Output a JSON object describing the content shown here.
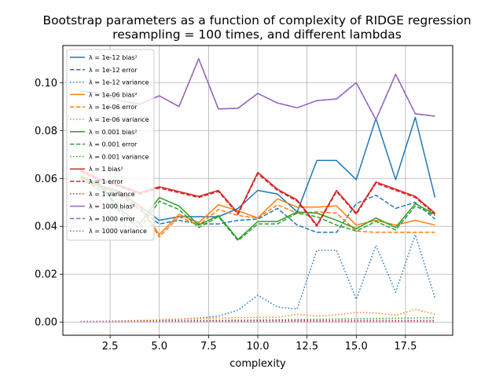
{
  "chart_data": {
    "type": "line",
    "title": "Bootstrap parameters as a function of complexity of RIDGE regression",
    "subtitle": "resampling = 100 times, and different lambdas",
    "xlabel": "complexity",
    "ylabel": "",
    "xlim": [
      0.1,
      19.9
    ],
    "ylim": [
      -0.0055,
      0.1155
    ],
    "xticks": [
      "2.5",
      "5.0",
      "7.5",
      "10.0",
      "12.5",
      "15.0",
      "17.5"
    ],
    "xtick_values": [
      2.5,
      5.0,
      7.5,
      10.0,
      12.5,
      15.0,
      17.5
    ],
    "yticks": [
      "0.00",
      "0.02",
      "0.04",
      "0.06",
      "0.08",
      "0.10"
    ],
    "ytick_values": [
      0.0,
      0.02,
      0.04,
      0.06,
      0.08,
      0.1
    ],
    "grid": true,
    "legend_position": "top-left",
    "x": [
      1,
      2,
      3,
      4,
      5,
      6,
      7,
      8,
      9,
      10,
      11,
      12,
      13,
      14,
      15,
      16,
      17,
      18,
      19
    ],
    "series": [
      {
        "name": "λ = 1e-12 bias²",
        "color": "#1f77b4",
        "style": "solid",
        "values": [
          0.061,
          0.057,
          0.0545,
          0.0485,
          0.0425,
          0.044,
          0.044,
          0.044,
          0.0475,
          0.055,
          0.0535,
          0.046,
          0.0675,
          0.0675,
          0.0595,
          0.085,
          0.0595,
          0.0855,
          0.052
        ]
      },
      {
        "name": "λ = 1e-12 error",
        "color": "#1f77b4",
        "style": "dashed",
        "values": [
          0.06,
          0.055,
          0.053,
          0.047,
          0.041,
          0.0425,
          0.041,
          0.041,
          0.0425,
          0.043,
          0.0475,
          0.0405,
          0.0375,
          0.0375,
          0.0495,
          0.053,
          0.0475,
          0.05,
          0.043
        ]
      },
      {
        "name": "λ = 1e-12 variance",
        "color": "#1f77b4",
        "style": "dotted",
        "values": [
          0.0002,
          0.0002,
          0.0003,
          0.0005,
          0.0008,
          0.0012,
          0.0017,
          0.0025,
          0.005,
          0.0112,
          0.0063,
          0.0055,
          0.03,
          0.03,
          0.0095,
          0.032,
          0.0125,
          0.0365,
          0.01
        ]
      },
      {
        "name": "λ = 1e-06 bias²",
        "color": "#ff7f0e",
        "style": "solid",
        "values": [
          0.0605,
          0.0565,
          0.054,
          0.0485,
          0.0365,
          0.045,
          0.0415,
          0.049,
          0.0465,
          0.0435,
          0.0515,
          0.048,
          0.048,
          0.0485,
          0.0405,
          0.0425,
          0.0405,
          0.0425,
          0.0405
        ]
      },
      {
        "name": "λ = 1e-06 error",
        "color": "#ff7f0e",
        "style": "dashed",
        "values": [
          0.06,
          0.056,
          0.0535,
          0.048,
          0.0355,
          0.044,
          0.0405,
          0.047,
          0.0445,
          0.0435,
          0.049,
          0.0455,
          0.046,
          0.0455,
          0.038,
          0.0375,
          0.0375,
          0.0375,
          0.0375
        ]
      },
      {
        "name": "λ = 1e-06 variance",
        "color": "#ff7f0e",
        "style": "dotted",
        "values": [
          0.0002,
          0.0003,
          0.0005,
          0.0007,
          0.001,
          0.0013,
          0.0015,
          0.0017,
          0.0018,
          0.002,
          0.002,
          0.0033,
          0.0025,
          0.003,
          0.004,
          0.0038,
          0.0028,
          0.0053,
          0.0033
        ]
      },
      {
        "name": "λ = 0.001 bias²",
        "color": "#2ca02c",
        "style": "solid",
        "values": [
          0.061,
          0.0575,
          0.047,
          0.041,
          0.052,
          0.0485,
          0.0405,
          0.0445,
          0.0345,
          0.042,
          0.042,
          0.046,
          0.0455,
          0.0425,
          0.039,
          0.0435,
          0.0395,
          0.0495,
          0.045
        ]
      },
      {
        "name": "λ = 0.001 error",
        "color": "#2ca02c",
        "style": "dashed",
        "values": [
          0.0605,
          0.057,
          0.046,
          0.039,
          0.0505,
          0.047,
          0.0395,
          0.044,
          0.034,
          0.041,
          0.041,
          0.0455,
          0.044,
          0.0405,
          0.038,
          0.042,
          0.0385,
          0.0485,
          0.0445
        ]
      },
      {
        "name": "λ = 0.001 variance",
        "color": "#2ca02c",
        "style": "dotted",
        "values": [
          0.0002,
          0.0002,
          0.0003,
          0.0004,
          0.0005,
          0.0006,
          0.0007,
          0.0008,
          0.0008,
          0.0009,
          0.001,
          0.0011,
          0.0012,
          0.0013,
          0.0014,
          0.0015,
          0.0016,
          0.0017,
          0.0018
        ]
      },
      {
        "name": "λ = 1 bias²",
        "color": "#d62728",
        "style": "solid",
        "values": [
          0.0635,
          0.0595,
          0.057,
          0.054,
          0.0565,
          0.0545,
          0.0525,
          0.055,
          0.0455,
          0.0625,
          0.0555,
          0.051,
          0.0405,
          0.055,
          0.0455,
          0.0585,
          0.0555,
          0.0525,
          0.0455
        ]
      },
      {
        "name": "λ = 1 error",
        "color": "#d62728",
        "style": "dashed",
        "values": [
          0.063,
          0.059,
          0.0565,
          0.0535,
          0.056,
          0.054,
          0.052,
          0.0545,
          0.045,
          0.062,
          0.055,
          0.0505,
          0.04,
          0.0545,
          0.045,
          0.058,
          0.055,
          0.052,
          0.045
        ]
      },
      {
        "name": "λ = 1 variance",
        "color": "#d62728",
        "style": "dotted",
        "values": [
          0.0002,
          0.0003,
          0.0003,
          0.0004,
          0.0004,
          0.0005,
          0.0005,
          0.0005,
          0.0005,
          0.0006,
          0.0006,
          0.0006,
          0.0006,
          0.0006,
          0.0006,
          0.0007,
          0.0007,
          0.0007,
          0.0007
        ]
      },
      {
        "name": "λ = 1000 bias²",
        "color": "#9467bd",
        "style": "solid",
        "values": [
          0.0965,
          0.0955,
          0.0925,
          0.091,
          0.0945,
          0.09,
          0.11,
          0.089,
          0.0893,
          0.0955,
          0.0915,
          0.0895,
          0.0925,
          0.0932,
          0.1,
          0.0845,
          0.1035,
          0.087,
          0.086
        ]
      },
      {
        "name": "λ = 1000 error",
        "color": "#9467bd",
        "style": "dashed",
        "values": [
          0.0965,
          0.0955,
          0.0925,
          0.091,
          0.0945,
          0.09,
          0.11,
          0.089,
          0.0893,
          0.0955,
          0.0915,
          0.0895,
          0.0925,
          0.0932,
          0.1,
          0.0845,
          0.1035,
          0.087,
          0.086
        ]
      },
      {
        "name": "λ = 1000 variance",
        "color": "#9467bd",
        "style": "dotted",
        "values": [
          0.0002,
          0.0002,
          0.0002,
          0.0002,
          0.0002,
          0.0002,
          0.0002,
          0.0002,
          0.0002,
          0.0002,
          0.0002,
          0.0002,
          0.0002,
          0.0002,
          0.0002,
          0.0002,
          0.0002,
          0.0002,
          0.0002
        ]
      }
    ]
  }
}
